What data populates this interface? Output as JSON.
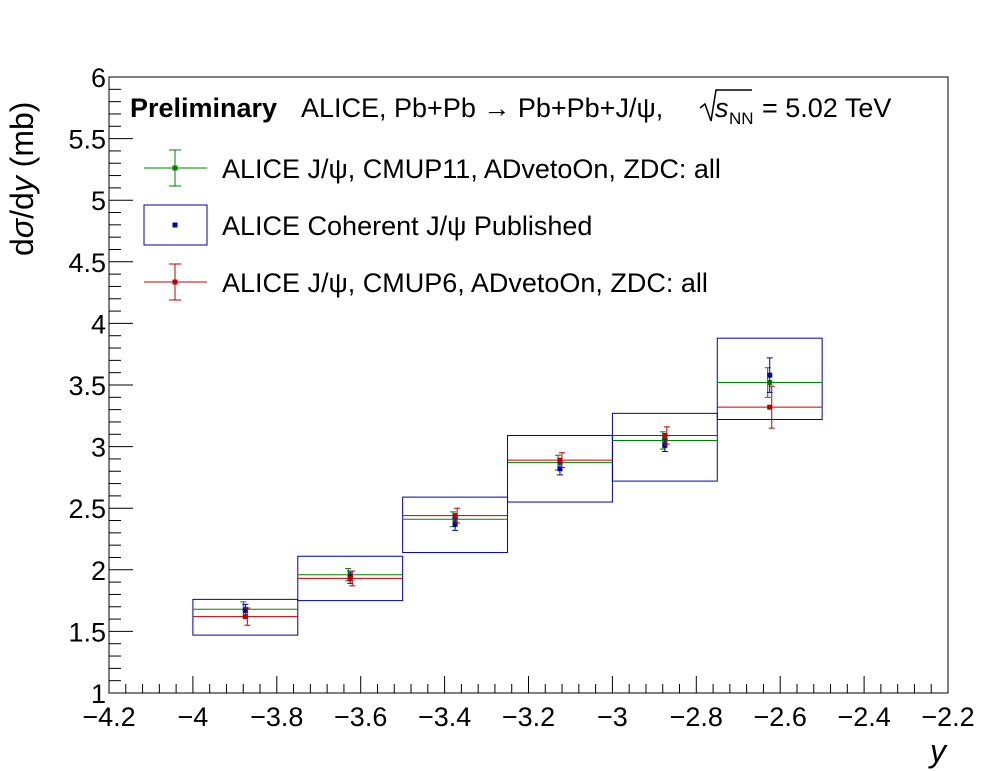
{
  "chart_data": {
    "type": "scatter",
    "preliminary_label": "Preliminary",
    "title_text": "ALICE, Pb+Pb → Pb+Pb+J/ψ,",
    "title_sqrt_s": "s",
    "title_sqrt_sub": "NN",
    "title_energy": "= 5.02 TeV",
    "xlabel": "y",
    "ylabel_prefix": "d",
    "ylabel_sigma": "σ",
    "ylabel_mid": "/d",
    "ylabel_y": "y",
    "ylabel_unit": " (mb)",
    "xlim": [
      -4.2,
      -2.2
    ],
    "ylim": [
      1,
      6
    ],
    "x_major_ticks": [
      -4.2,
      -4.0,
      -3.8,
      -3.6,
      -3.4,
      -3.2,
      -3.0,
      -2.8,
      -2.6,
      -2.4,
      -2.2
    ],
    "x_tick_labels": [
      "−4.2",
      "−4",
      "−3.8",
      "−3.6",
      "−3.4",
      "−3.2",
      "−3",
      "−2.8",
      "−2.6",
      "−2.4",
      "−2.2"
    ],
    "y_major_ticks": [
      1,
      1.5,
      2,
      2.5,
      3,
      3.5,
      4,
      4.5,
      5,
      5.5,
      6
    ],
    "y_tick_labels": [
      "1",
      "1.5",
      "2",
      "2.5",
      "3",
      "3.5",
      "4",
      "4.5",
      "5",
      "5.5",
      "6"
    ],
    "grid": false,
    "legend_position": "top-left",
    "series": [
      {
        "name": "ALICE J/ψ, CMUP11, ADvetoOn, ZDC: all",
        "color": "#008000",
        "style": "point-xerr",
        "x": [
          -3.875,
          -3.625,
          -3.375,
          -3.125,
          -2.875,
          -2.625
        ],
        "x_halfwidth": 0.125,
        "y": [
          1.68,
          1.96,
          2.41,
          2.87,
          3.05,
          3.52
        ],
        "yerr": [
          0.06,
          0.05,
          0.06,
          0.06,
          0.07,
          0.12
        ]
      },
      {
        "name": "ALICE Coherent J/ψ Published",
        "color": "#0000b0",
        "style": "point-box",
        "x": [
          -3.875,
          -3.625,
          -3.375,
          -3.125,
          -2.875,
          -2.625
        ],
        "x_halfwidth": 0.125,
        "y": [
          1.67,
          1.94,
          2.37,
          2.82,
          3.01,
          3.58
        ],
        "yerr": [
          0.05,
          0.05,
          0.05,
          0.05,
          0.05,
          0.14
        ],
        "syst_low": [
          1.47,
          1.75,
          2.14,
          2.55,
          2.72,
          3.22
        ],
        "syst_high": [
          1.76,
          2.11,
          2.59,
          3.09,
          3.27,
          3.88
        ]
      },
      {
        "name": "ALICE J/ψ, CMUP6, ADvetoOn, ZDC: all",
        "color": "#c00000",
        "style": "point-xerr",
        "x": [
          -3.875,
          -3.625,
          -3.375,
          -3.125,
          -2.875,
          -2.625
        ],
        "x_halfwidth": 0.125,
        "y": [
          1.62,
          1.93,
          2.44,
          2.89,
          3.09,
          3.32
        ],
        "yerr": [
          0.07,
          0.06,
          0.06,
          0.06,
          0.07,
          0.17
        ]
      }
    ]
  }
}
